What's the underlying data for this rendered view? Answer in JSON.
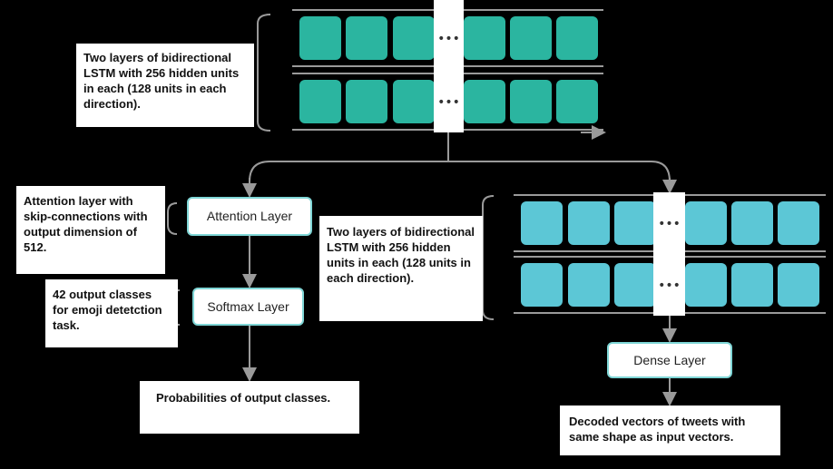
{
  "encoder": {
    "description": "Two layers of bidirectional LSTM with 256 hidden units in each (128 units in each direction).",
    "ellipsis": "•••",
    "cell_color": "#2bb5a0"
  },
  "classifier": {
    "attention_description": "Attention layer with skip-connections with output dimension of 512.",
    "attention_label": "Attention Layer",
    "softmax_description": "42 output classes for emoji detetction task.",
    "softmax_label": "Softmax Layer",
    "output_label": "Probabilities of output classes."
  },
  "decoder": {
    "description": "Two layers of bidirectional LSTM with 256 hidden units in each (128 units in each direction).",
    "ellipsis": "•••",
    "cell_color": "#5cc7d6",
    "dense_label": "Dense Layer",
    "output_label": "Decoded vectors of tweets with same shape as input vectors."
  },
  "colors": {
    "background": "#000000",
    "line": "#9a9a9a",
    "box_border": "#7fd6d6"
  }
}
